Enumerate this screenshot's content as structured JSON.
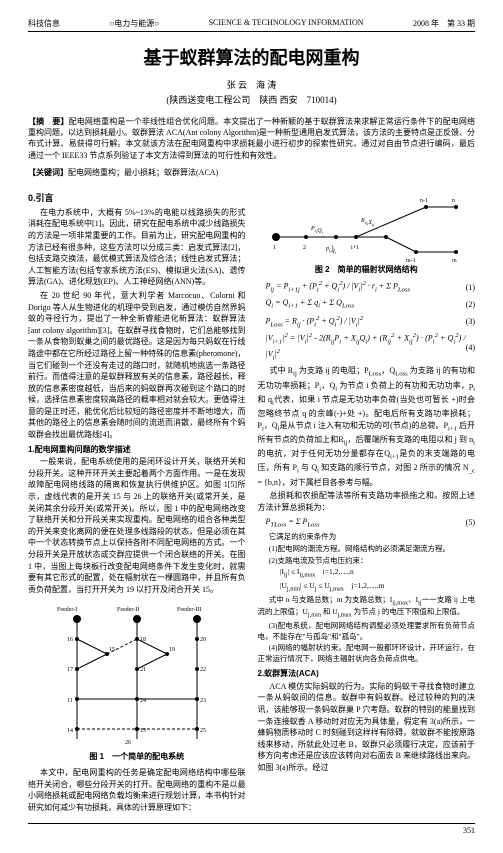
{
  "header": {
    "left": "科技信息",
    "mid_left": "○电力与能源○",
    "center": "SCIENCE & TECHNOLOGY INFORMATION",
    "right": "2008 年　第 33 期"
  },
  "title": "基于蚁群算法的配电网重构",
  "authors": "张 云　海 涛",
  "affil": "(陕西送变电工程公司　陕西 西安　710014)",
  "abstract_label": "【摘　要】",
  "abstract": "配电网络重构是一个非线性组合优化问题。本文提出了一种新颖的基于蚁群算法来求解正常运行条件下的配电网络重构问题，以达到损耗最小。蚁群算法 ACA(Ant colony Algorithm)是一种新型通用启发式算法，该方法的主要特点是正反馈、分布式计算、易获得可行解。本文就该方法在配电网重构中求损耗最小进行初步的探索性研究，通过对自由节点进行编码，最后通过一个 IEEE33 节点系列验证了本文方法得到算法的可行性和有效性。",
  "keywords_label": "【关键词】",
  "keywords": "配电网络重构；最小损耗；蚁群算法(ACA)",
  "sec0_head": "0.引言",
  "sec0_p1": "在电力系统中，大概有 5%~13%的电能以线路损失的形式消耗在配电系统中[1]。因此，研究在配电系统中减少线路损失的方法是一项非常重要的工作。目前为止，研究配电网重构的方法已经有很多种，这些方法可以分成三类：启发式算法[2]，包括支路交换法，最优模式算法及综合法；线性启发式算法；人工智能方法(包括专家系统方法(ES)、模拟退火法(SA)、遗传算法(GA)、进化规划(EP)、人工神经网络(ANN)等。",
  "sec0_p2": "在 20 世纪 90 年代，意大利学者 Marcocuo、Colorni 和 Dorigo 等人从生物进化的机理中受到启发，通过模仿自然界蚂蚁的寻径行为，提出了一种全新睿能进化新算法：蚁群算法[ant colony algorithm][3]。在蚁群寻找食物时，它们总能够找到一条从食物到蚁巢之间的最优路径。这是因为每只蚂蚁在行线路途中都在它所经过路径上留一种特殊的信息素(pheromone)，当它们碰到一个还没有走过的路口时，就随机地挑选一条路径前行。而值得注意的是蚁群释放有关的信息素，路径越长，释放的信息素密度越低，当后来的蚂蚁群再次碰到这个路口的时候，选择信息素密度较高路径的概率相对就会较大。更值得注意的是正时还，能优化后比较短的路径密度并不断地增大，而其他的路径上的信息素会随时间的流逝而消散，最终所有个蚂蚁群会找出最优路线[4]。",
  "sec1_head": "1.配电网重构问题的数学描述",
  "sec1_p1": "一般来说，配电系统使用的是闭环设计开关，联络开关和分段开关。这种开环开关主要起着两个方面作用。一是在发现故障配电网络线路的隔离和恢复执行供维护区。如图 1[5]所示，虚线代表的是开关 15 与 26 上的联络开关(或常开关，是关闭其余分段开关(或常开关)。所以，图 1 中的配电网络改变了联络开关和分开段关来实现重构。配电网络的组合各种类型的开关来变化离网的便在处理多线路段的状态，但是必须在其中一个状态转换节点上以保持各附不同配电网络的方式。一个分段开关是开放状态或交群应提供一个闭合联络的开关。在图 1 中，当图上每块板行改变配电网络条件下发生变化时，就需要有其它形式的配置，处在幅射状在一棵圆路中，并且所有负责负荷配置，当打开开关为 19 以打开及闭合开关 15。",
  "fig1_cap": "图 1　一个简单的配电系统",
  "sec1_p2": "本文中，配电网重构的任务是确定配电网络结构中哪些联络开关闭合，哪些分段开关的打开。配电网络的重构不是以最小网络损耗或配电网络负载均衡来进行规划计算，本书构针对研究如何减少有功损耗，具体的计算原理如下：",
  "fig2_cap": "图 2　简单的辐射状网络结构",
  "eq1": "P<sub>ij</sub> = P<sub>i+1j</sub> + (P<sub>i</sub><sup>2</sup> + Q<sub>i</sub><sup>2</sup>) / |V<sub>i</sub>|<sup>2</sup> · r<sub>i</sub> + Σ P<sub>Loss</sub>",
  "eq1_num": "(1)",
  "eq2": "Q<sub>i</sub> = Q<sub>i+1</sub> + Σ q<sub>i</sub> + Σ Q<sub>Loss</sub>",
  "eq2_num": "(2)",
  "eq3": "P<sub>Loss</sub> = R<sub>ij</sub> · (P<sub>i</sub><sup>2</sup> + Q<sub>i</sub><sup>2</sup>) / |V<sub>i</sub>|<sup>2</sup>",
  "eq3_num": "(3)",
  "eq4": "|V<sub>i+1</sub>|<sup>2</sup> = |V<sub>i</sub>|<sup>2</sup> - 2(R<sub>ij</sub>P<sub>i</sub> + X<sub>ij</sub>Q<sub>i</sub>) + (R<sub>ij</sub><sup>2</sup> + X<sub>ij</sub><sup>2</sup>) · (P<sub>i</sub><sup>2</sup> + Q<sub>i</sub><sup>2</sup>) / |V<sub>i</sub>|<sup>2</sup>",
  "eq4_num": "(4)",
  "sec1_p3": "式中 R<sub>ij</sub> 为支路 ij 的电阻；P<sub>Loss</sub>，Q<sub>Loss</sub> 为支路 ij 的有功和无功功率损耗；P<sub>i</sub>，Q<sub>i</sub> 为节点 i 负荷上的有功和无功功率，p<sub>i</sub> 和 q<sub>i</sub>代表，如果 i 节点是无功功率负荷(当处也可暂长 +)时会忽略终节点 q 的余峰(-)+处 +)。配电后所有支路功率损耗；P<sub>i</sub>，Q<sub>i</sub>是从节点 i 注入有功和无功的可(节点)的总荷。P<sub>i+1</sub> 后开所有节点的负荷加上和R<sub>ij</sub>，后覆端所有支路的电阻以和 j 到 n<sub>i</sub> 的电抗，对于任何无功分量都存在Q<sub>i+1</sub>是负的末支端路的电压，所有 P<sub>i</sub> 与 Q<sub>i</sub> 知支路的顺行节点，对图 2 所示的情况 N<sub>_c</sub> = {b,n}，对下属栏目各参考与幅。",
  "sec1_p4": "总损耗和农损配等法等所有支路功率损拖之和。按照上述方法计算总损耗为：",
  "eq5": "P<sub>TLoss</sub> = Σ P<sub>Loss</sub>",
  "eq5_num": "(5)",
  "constraints_head": "它满足的约束条件为",
  "c1": "(1)配电网的潮流方程。网络结构的必须满足潮流方程。",
  "c2": "(2)支路电流及节点电压约束：",
  "c2a": "|I<sub>ij</sub>| ≤ I<sub>ij,max</sub>　i=1,2,⋯,n",
  "c2b": "|U<sub>j,min</sub>| ≤ U<sub>j</sub> ≤ U<sub>j,max</sub>　j=1,2,⋯,m",
  "c2_desc": "式中 n 与支路总数；m 为支路总数；I<sub>ij,max</sub>、I<sub>ij</sub>一一支路 ij 上电流的上限值；U<sub>j,min</sub> 和 U<sub>j,max</sub> 为节点 j 的电压下限值和上限值。",
  "c3": "(3)配电系统，配电网网络结构调整必须处理要求所有负荷节点电，不能存在\"与孤岛\"和\"孤岛\"。",
  "c4": "(4)网络的幅射状约束。配电网一般都环环设计，开环运行，在正常运行情况下，网络主辐射状向各负荷点供电。",
  "sec2_head": "2.蚁群算法(ACA)",
  "sec2_p1": "ACA 模仿实际蚂蚁的行为。实际的蚂蚁干寻找食物时建立一条从蚂蚁间的信息。蚁群中有蚂蚁群。经过较种的判的决讯，该能够现一条蚂蚁群巢 P 穴考题。蚁群的特别的能量找到一条连接蚁香 A 移动时对应无为具体量，假定有 3(a)所示，一蜂蚂物质移动时 C 时刻碰到这样样有除碍，就蚁群不能按原路线来移动，所就此处过老 B，蚁群只必须履行决定，应该前于移方向考虑还是应该应该转向对右面去 B 来继续路线出来向。如图 3(a)所示。经过",
  "footer": "351",
  "fig1": {
    "feeders": [
      "Feeder-I",
      "Feeder-II",
      "Feeder-III"
    ],
    "nodes": [
      "1",
      "2",
      "3",
      "4",
      "8",
      "9",
      "10",
      "11",
      "12",
      "13",
      "14",
      "15",
      "16",
      "17",
      "18",
      "19",
      "20",
      "21",
      "22",
      "23",
      "24",
      "25",
      "26"
    ],
    "edge_color": "#000000",
    "dashed_edges": [
      "15",
      "26"
    ]
  },
  "fig2": {
    "nodes": [
      "1",
      "2",
      "i",
      "i+1",
      "n-1",
      "n",
      "m-1",
      "m"
    ],
    "labels": [
      "R<sub>ij</sub>,X<sub>ij</sub>",
      "P<sub>i</sub>,Q<sub>i</sub>",
      "p<sub>i</sub>,q<sub>i</sub>"
    ],
    "edge_color": "#000000"
  }
}
